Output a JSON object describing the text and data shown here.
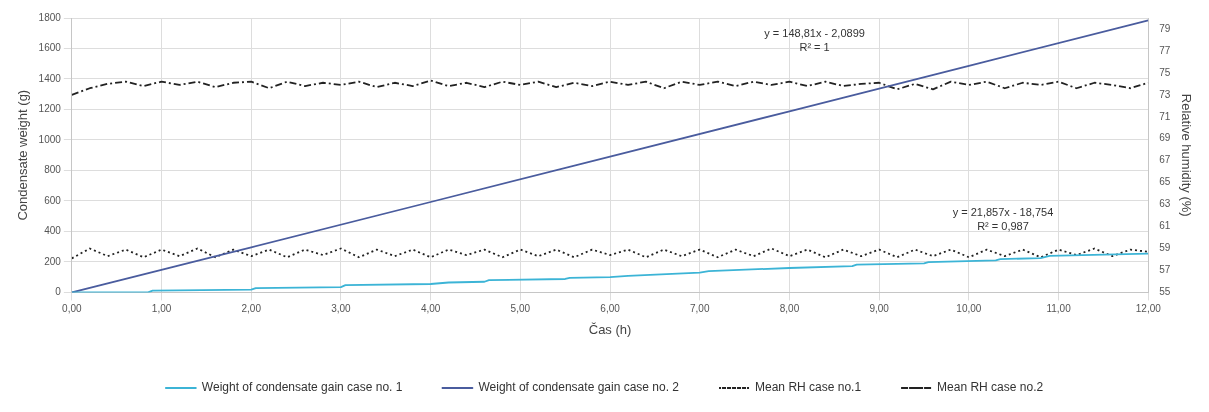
{
  "chart_data": {
    "type": "line",
    "xlabel": "Čas (h)",
    "ylabel": "Condensate weight (g)",
    "y2label": "Relative humidity (%)",
    "xlim": [
      0,
      12
    ],
    "xticks": [
      {
        "value": 0,
        "label": "0,00"
      },
      {
        "value": 1,
        "label": "1,00"
      },
      {
        "value": 2,
        "label": "2,00"
      },
      {
        "value": 3,
        "label": "3,00"
      },
      {
        "value": 4,
        "label": "4,00"
      },
      {
        "value": 5,
        "label": "5,00"
      },
      {
        "value": 6,
        "label": "6,00"
      },
      {
        "value": 7,
        "label": "7,00"
      },
      {
        "value": 8,
        "label": "8,00"
      },
      {
        "value": 9,
        "label": "9,00"
      },
      {
        "value": 10,
        "label": "10,00"
      },
      {
        "value": 11,
        "label": "11,00"
      },
      {
        "value": 12,
        "label": "12,00"
      }
    ],
    "ylim": [
      0,
      1800
    ],
    "yticks": [
      0,
      200,
      400,
      600,
      800,
      1000,
      1200,
      1400,
      1600,
      1800
    ],
    "y2lim": [
      55,
      80
    ],
    "y2ticks": [
      55,
      57,
      59,
      61,
      63,
      65,
      67,
      69,
      71,
      73,
      75,
      77,
      79
    ],
    "grid": true,
    "legend": "bottom",
    "marker": "none",
    "series": [
      {
        "name": "Weight of condensate gain case no. 1",
        "color": "#3cb4d6",
        "line_style": "solid",
        "x": [
          0,
          0.85,
          0.9,
          2.0,
          2.05,
          3.0,
          3.05,
          4.0,
          4.2,
          4.6,
          4.65,
          5.5,
          5.55,
          6.0,
          6.2,
          7.0,
          7.1,
          8.0,
          8.7,
          8.75,
          9.5,
          9.55,
          10.3,
          10.35,
          10.8,
          10.9,
          12
        ],
        "values": [
          0,
          0,
          12,
          18,
          28,
          35,
          48,
          55,
          65,
          70,
          80,
          88,
          95,
          100,
          108,
          130,
          140,
          160,
          172,
          182,
          190,
          198,
          210,
          218,
          225,
          240,
          255
        ]
      },
      {
        "name": "Weight of condensate gain case no. 2",
        "color": "#4a5c9e",
        "line_style": "solid",
        "x": [
          0,
          2,
          4,
          6,
          8,
          10,
          12
        ],
        "values": [
          0,
          296,
          593,
          891,
          1188,
          1486,
          1784
        ]
      },
      {
        "name": "Mean RH case no.1",
        "color": "#222222",
        "line_style": "dotted",
        "axis": "y2",
        "x": [
          0,
          0.2,
          0.4,
          0.6,
          0.8,
          1.0,
          1.2,
          1.4,
          1.6,
          1.8,
          2.0,
          2.2,
          2.4,
          2.6,
          2.8,
          3.0,
          3.2,
          3.4,
          3.6,
          3.8,
          4.0,
          4.2,
          4.4,
          4.6,
          4.8,
          5.0,
          5.2,
          5.4,
          5.6,
          5.8,
          6.0,
          6.2,
          6.4,
          6.6,
          6.8,
          7.0,
          7.2,
          7.4,
          7.6,
          7.8,
          8.0,
          8.2,
          8.4,
          8.6,
          8.8,
          9.0,
          9.2,
          9.4,
          9.6,
          9.8,
          10.0,
          10.2,
          10.4,
          10.6,
          10.8,
          11.0,
          11.2,
          11.4,
          11.6,
          11.8,
          12.0
        ],
        "values": [
          58.1,
          59.0,
          58.3,
          58.9,
          58.2,
          58.9,
          58.3,
          59.0,
          58.2,
          58.9,
          58.3,
          58.9,
          58.2,
          58.9,
          58.4,
          59.0,
          58.2,
          58.9,
          58.3,
          58.9,
          58.2,
          58.9,
          58.4,
          58.9,
          58.2,
          58.9,
          58.3,
          58.9,
          58.2,
          58.9,
          58.4,
          58.9,
          58.2,
          58.9,
          58.3,
          58.9,
          58.2,
          58.9,
          58.3,
          59.0,
          58.3,
          58.9,
          58.2,
          58.9,
          58.3,
          58.9,
          58.2,
          58.9,
          58.3,
          58.9,
          58.2,
          58.9,
          58.3,
          58.9,
          58.2,
          58.9,
          58.4,
          59.0,
          58.3,
          58.9,
          58.7
        ]
      },
      {
        "name": "Mean RH case no.2",
        "color": "#222222",
        "line_style": "dashed",
        "axis": "y2",
        "x": [
          0,
          0.2,
          0.4,
          0.6,
          0.8,
          1.0,
          1.2,
          1.4,
          1.6,
          1.8,
          2.0,
          2.2,
          2.4,
          2.6,
          2.8,
          3.0,
          3.2,
          3.4,
          3.6,
          3.8,
          4.0,
          4.2,
          4.4,
          4.6,
          4.8,
          5.0,
          5.2,
          5.4,
          5.6,
          5.8,
          6.0,
          6.2,
          6.4,
          6.6,
          6.8,
          7.0,
          7.2,
          7.4,
          7.6,
          7.8,
          8.0,
          8.2,
          8.4,
          8.6,
          8.8,
          9.0,
          9.2,
          9.4,
          9.6,
          9.8,
          10.0,
          10.2,
          10.4,
          10.6,
          10.8,
          11.0,
          11.2,
          11.4,
          11.6,
          11.8,
          12.0
        ],
        "values": [
          73.0,
          73.6,
          74.0,
          74.2,
          73.8,
          74.2,
          73.9,
          74.2,
          73.7,
          74.1,
          74.2,
          73.6,
          74.2,
          73.8,
          74.1,
          73.9,
          74.2,
          73.7,
          74.1,
          73.8,
          74.3,
          73.8,
          74.1,
          73.7,
          74.2,
          73.9,
          74.2,
          73.7,
          74.1,
          73.8,
          74.2,
          73.9,
          74.2,
          73.6,
          74.2,
          73.9,
          74.2,
          73.8,
          74.2,
          73.9,
          74.2,
          73.8,
          74.2,
          73.8,
          74.0,
          74.1,
          73.5,
          74.0,
          73.5,
          74.2,
          73.9,
          74.2,
          73.6,
          74.1,
          73.9,
          74.2,
          73.6,
          74.1,
          73.9,
          73.6,
          74.1
        ]
      }
    ],
    "annotations": [
      "y = 148,81x - 2,0899",
      "R² = 1",
      "y = 21,857x - 18,754",
      "R² = 0,987"
    ]
  }
}
